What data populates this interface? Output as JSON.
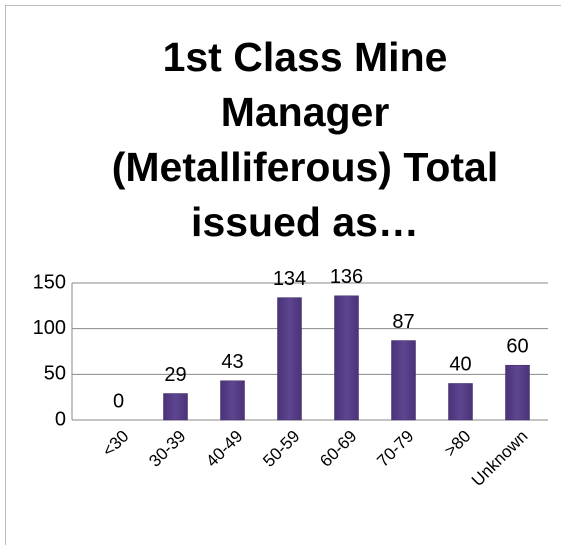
{
  "chart_data": {
    "type": "bar",
    "title": "1st Class Mine Manager (Metalliferous) Total issued as…",
    "categories": [
      "<30",
      "30-39",
      "40-49",
      "50-59",
      "60-69",
      "70-79",
      ">80",
      "Unknown"
    ],
    "values": [
      0,
      29,
      43,
      134,
      136,
      87,
      40,
      60
    ],
    "color": "#5e4591",
    "ylim": [
      0,
      150
    ],
    "yticks": [
      0,
      50,
      100,
      150
    ],
    "grid": true
  }
}
